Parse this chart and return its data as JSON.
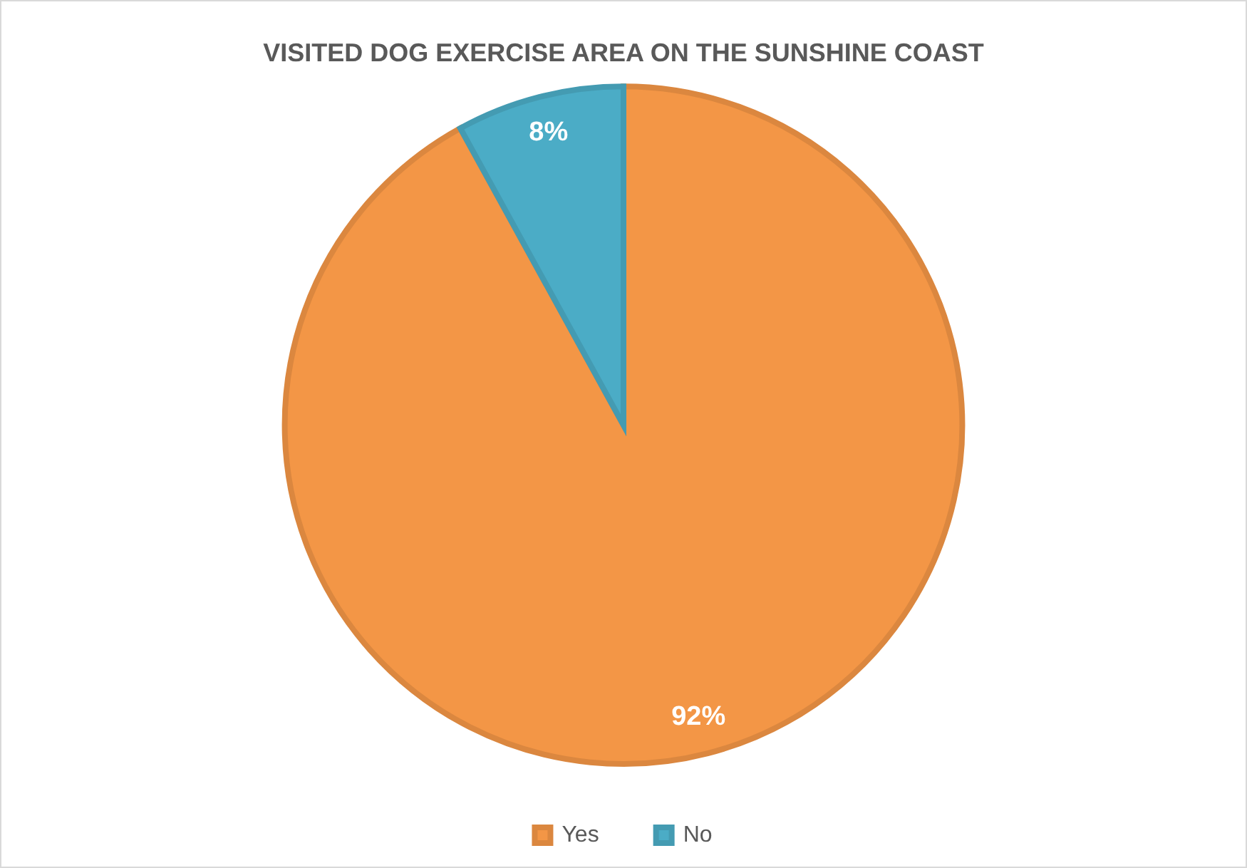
{
  "chart_data": {
    "type": "pie",
    "title": "VISITED DOG EXERCISE AREA ON THE SUNSHINE COAST",
    "categories": [
      "Yes",
      "No"
    ],
    "values": [
      92,
      8
    ],
    "colors": [
      "#f39646",
      "#4bacc6"
    ],
    "value_labels": [
      "92%",
      "8%"
    ],
    "legend": "bottom"
  }
}
